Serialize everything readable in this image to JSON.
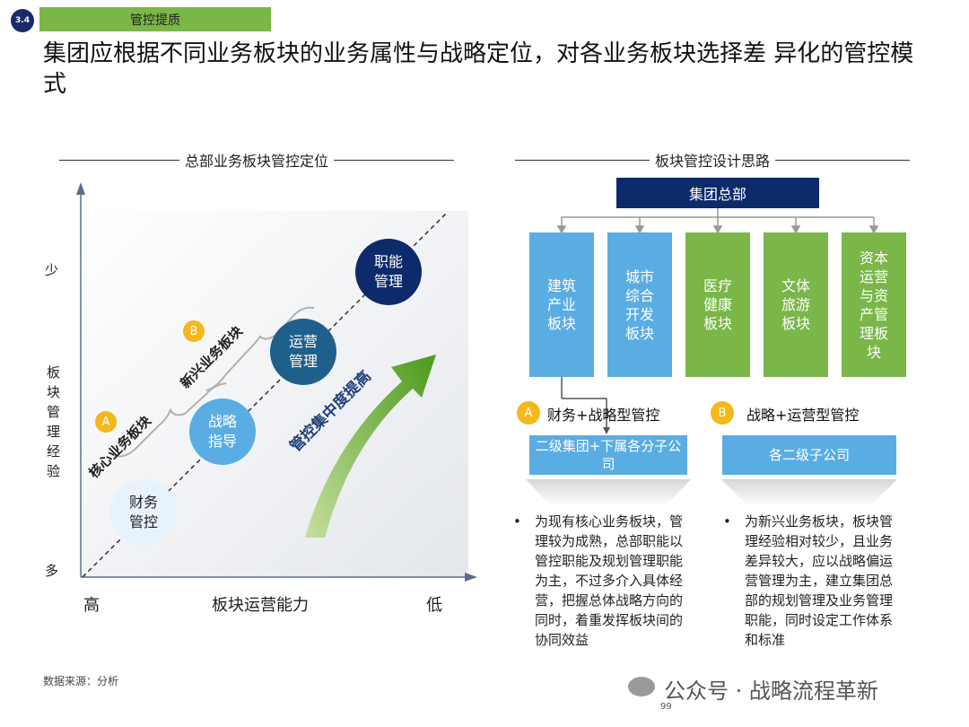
{
  "header": {
    "section_number": "3.4",
    "section_tag": "管控提质",
    "title": "集团应根据不同业务板块的业务属性与战略定位，对各业务板块选择差 异化的管控模式"
  },
  "left_panel": {
    "title": "总部业务板块管控定位",
    "y_axis": {
      "label": "板块管理经验",
      "top": "少",
      "bottom": "多"
    },
    "x_axis": {
      "label": "板块运营能力",
      "left": "高",
      "right": "低"
    },
    "circles": [
      {
        "text": "财务\n管控",
        "fill": "#e7f2fb",
        "text_color": "#1f1f1f"
      },
      {
        "text": "战略\n指导",
        "fill": "#5aade2",
        "text_color": "#ffffff"
      },
      {
        "text": "运营\n管理",
        "fill": "#1f5f8b",
        "text_color": "#ffffff"
      },
      {
        "text": "职能\n管理",
        "fill": "#0d2a6b",
        "text_color": "#ffffff"
      }
    ],
    "groups": [
      {
        "badge": "A",
        "label": "核心业务板块"
      },
      {
        "badge": "B",
        "label": "新兴业务板块"
      }
    ],
    "arrow_label": "管控集中度提高"
  },
  "right_panel": {
    "title": "板块管控设计思路",
    "hq": "集团总部",
    "segments": [
      {
        "text": "建筑\n产业\n板块",
        "color": "blue"
      },
      {
        "text": "城市\n综合\n开发\n板块",
        "color": "blue"
      },
      {
        "text": "医疗\n健康\n板块",
        "color": "green"
      },
      {
        "text": "文体\n旅游\n板块",
        "color": "green"
      },
      {
        "text": "资本\n运营\n与资\n产管\n理板\n块",
        "color": "green"
      }
    ],
    "modes": [
      {
        "badge": "A",
        "label": "财务+战略型管控",
        "entity": "二级集团+下属各分子公司",
        "bullet": "为现有核心业务板块，管理较为成熟，总部职能以管控职能及规划管理职能为主，不过多介入具体经营，把握总体战略方向的同时，着重发挥板块间的协同效益"
      },
      {
        "badge": "B",
        "label": "战略+运营型管控",
        "entity": "各二级子公司",
        "bullet": "为新兴业务板块，板块管理经验相对较少，且业务差异较大，应以战略偏运营管理为主，建立集团总部的规划管理及业务管理职能，同时设定工作体系和标准"
      }
    ]
  },
  "footer": {
    "source": "数据来源：分析",
    "watermark": "公众号 · 战略流程革新",
    "page": "99"
  },
  "colors": {
    "navy": "#0d2a6b",
    "blue": "#5aade2",
    "green": "#7ab648",
    "yellow": "#f4b81c"
  }
}
